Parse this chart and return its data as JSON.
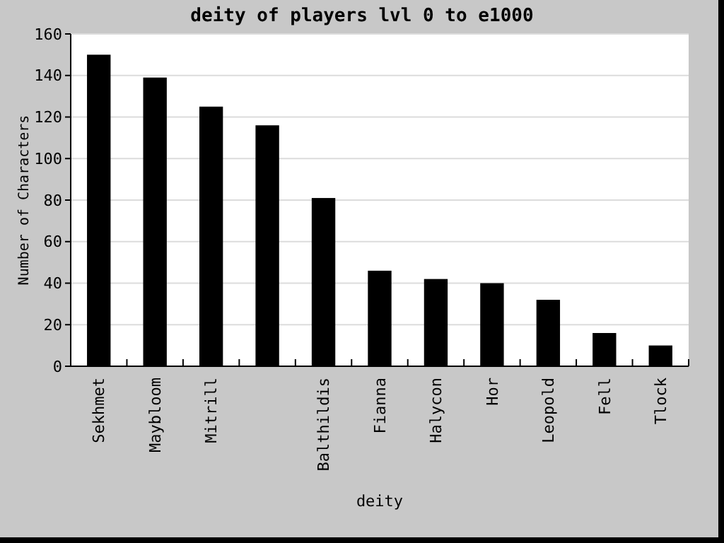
{
  "chart_data": {
    "type": "bar",
    "title": "deity of players lvl 0 to e1000",
    "xlabel": "deity",
    "ylabel": "Number of Characters",
    "categories": [
      "Sekhmet",
      "Maybloom",
      "Mitrill",
      null,
      "Balthildis",
      "Fianna",
      "Halycon",
      "Hor",
      "Leopold",
      "Fell",
      "Tlock"
    ],
    "values": [
      150,
      139,
      125,
      116,
      81,
      46,
      42,
      40,
      32,
      16,
      10
    ],
    "color": "#000000",
    "ylim": [
      0,
      160
    ],
    "yticks": [
      0,
      20,
      40,
      60,
      80,
      100,
      120,
      140,
      160
    ],
    "grid": "y"
  }
}
